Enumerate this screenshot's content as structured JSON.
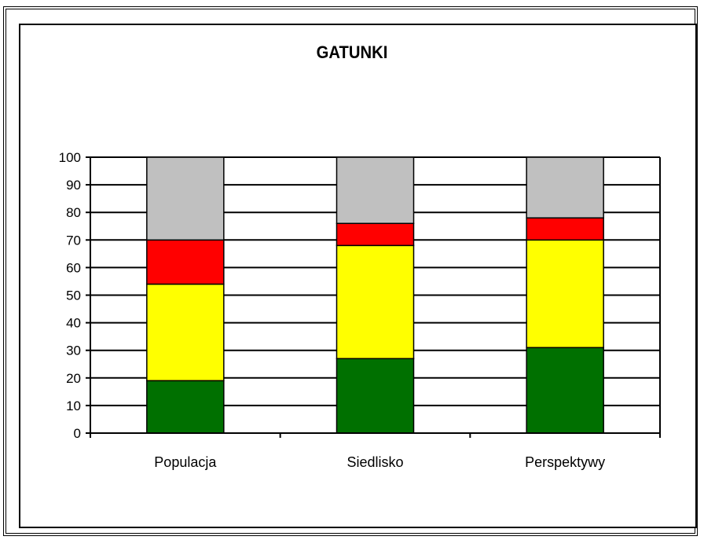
{
  "chart_data": {
    "type": "bar",
    "stacked": true,
    "title": "GATUNKI",
    "xlabel": "",
    "ylabel": "",
    "ylim": [
      0,
      100
    ],
    "yticks": [
      0,
      10,
      20,
      30,
      40,
      50,
      60,
      70,
      80,
      90,
      100
    ],
    "categories": [
      "Populacja",
      "Siedlisko",
      "Perspektywy"
    ],
    "grid": true,
    "legend": "none",
    "series": [
      {
        "color": "#007000",
        "values": [
          19,
          27,
          31
        ]
      },
      {
        "color": "#ffff00",
        "values": [
          35,
          41,
          39
        ]
      },
      {
        "color": "#ff0000",
        "values": [
          16,
          8,
          8
        ]
      },
      {
        "color": "#c0c0c0",
        "values": [
          30,
          24,
          22
        ]
      }
    ]
  }
}
